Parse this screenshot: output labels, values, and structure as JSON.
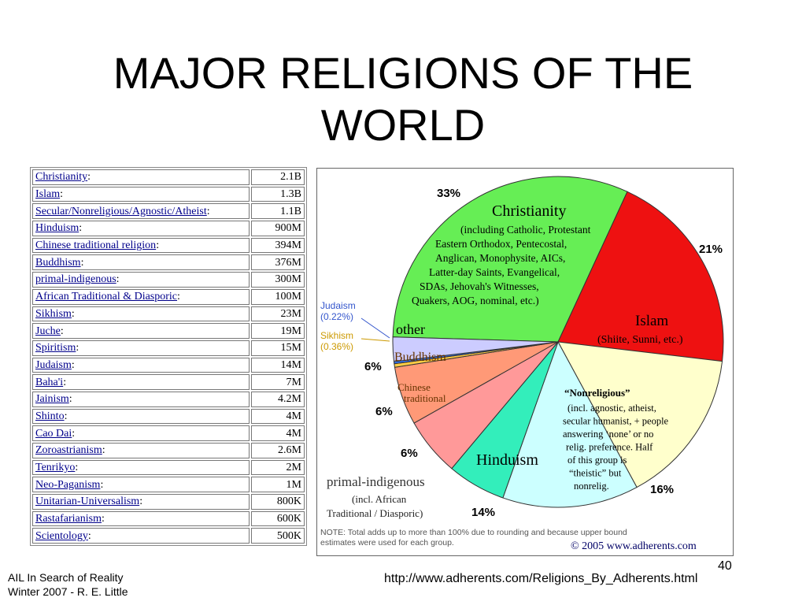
{
  "slide": {
    "title_line1": "MAJOR RELIGIONS  OF THE",
    "title_line2": "WORLD",
    "footer_line1": "AIL In Search of Reality",
    "footer_line2": "Winter 2007 - R. E. Little",
    "page_number": "40",
    "source_url": "http://www.adherents.com/Religions_By_Adherents.html"
  },
  "table": {
    "rows": [
      {
        "name": "Christianity",
        "value": "2.1B"
      },
      {
        "name": "Islam",
        "value": "1.3B"
      },
      {
        "name": "Secular/Nonreligious/Agnostic/Atheist",
        "value": "1.1B"
      },
      {
        "name": "Hinduism",
        "value": "900M"
      },
      {
        "name": "Chinese traditional religion",
        "value": "394M"
      },
      {
        "name": "Buddhism",
        "value": "376M"
      },
      {
        "name": "primal-indigenous",
        "value": "300M"
      },
      {
        "name": "African Traditional & Diasporic",
        "value": "100M"
      },
      {
        "name": "Sikhism",
        "value": "23M"
      },
      {
        "name": "Juche",
        "value": "19M"
      },
      {
        "name": "Spiritism",
        "value": "15M"
      },
      {
        "name": "Judaism",
        "value": "14M"
      },
      {
        "name": "Baha'i",
        "value": "7M"
      },
      {
        "name": "Jainism",
        "value": "4.2M"
      },
      {
        "name": "Shinto",
        "value": "4M"
      },
      {
        "name": "Cao Dai",
        "value": "4M"
      },
      {
        "name": "Zoroastrianism",
        "value": "2.6M"
      },
      {
        "name": "Tenrikyo",
        "value": "2M"
      },
      {
        "name": "Neo-Paganism",
        "value": "1M"
      },
      {
        "name": "Unitarian-Universalism",
        "value": "800K"
      },
      {
        "name": "Rastafarianism",
        "value": "600K"
      },
      {
        "name": "Scientology",
        "value": "500K"
      }
    ]
  },
  "chart_data": {
    "type": "pie",
    "slices": [
      {
        "key": "christianity",
        "value": 33,
        "color": "#66ee55",
        "pct_label": "33%",
        "label_lines": [
          "Christianity"
        ],
        "sub_lines": [
          "(including Catholic, Protestant",
          "Eastern Orthodox, Pentecostal,",
          "Anglican, Monophysite, AICs,",
          "Latter-day Saints, Evangelical,",
          "SDAs, Jehovah's Witnesses,",
          "Quakers, AOG, nominal, etc.)"
        ]
      },
      {
        "key": "islam",
        "value": 21,
        "color": "#ee1111",
        "pct_label": "21%",
        "label_lines": [
          "Islam"
        ],
        "sub_lines": [
          "(Shiite, Sunni, etc.)"
        ]
      },
      {
        "key": "nonreligious",
        "value": 16,
        "color": "#ffffcc",
        "pct_label": "16%",
        "label_lines": [
          "“Nonreligious”"
        ],
        "sub_lines": [
          "(incl. agnostic, atheist,",
          "secular humanist, + people",
          "answering ‘none’ or no",
          "relig. preference. Half",
          "of this group is",
          "“theistic” but",
          "nonrelig."
        ]
      },
      {
        "key": "hinduism",
        "value": 14,
        "color": "#ccffff",
        "pct_label": "14%",
        "label_lines": [
          "Hinduism"
        ],
        "sub_lines": []
      },
      {
        "key": "primal",
        "value": 6,
        "color": "#33eebb",
        "pct_label": "6%",
        "label_lines": [
          "primal-indigenous"
        ],
        "sub_lines": [
          "(incl. African",
          "Traditional / Diasporic)"
        ]
      },
      {
        "key": "chinese",
        "value": 6,
        "color": "#ff9999",
        "pct_label": "6%",
        "label_lines": [
          "Chinese",
          "traditional"
        ],
        "sub_lines": []
      },
      {
        "key": "buddhism",
        "value": 6,
        "color": "#ff9977",
        "pct_label": "6%",
        "label_lines": [
          "Buddhism"
        ],
        "sub_lines": []
      },
      {
        "key": "sikhism",
        "value": 0.36,
        "color": "#ffcc44",
        "pct_label": "",
        "label_lines": [
          "Sikhism",
          "(0.36%)"
        ],
        "sub_lines": []
      },
      {
        "key": "judaism",
        "value": 0.22,
        "color": "#3377ff",
        "pct_label": "",
        "label_lines": [
          "Judaism",
          "(0.22%)"
        ],
        "sub_lines": []
      },
      {
        "key": "other",
        "value": 2.5,
        "color": "#ccccff",
        "pct_label": "",
        "label_lines": [
          "other"
        ],
        "sub_lines": []
      }
    ],
    "note_line1": "NOTE: Total adds up to more than 100% due to rounding and because upper bound",
    "note_line2": "estimates were used for each group.",
    "credit": "© 2005 www.adherents.com"
  }
}
